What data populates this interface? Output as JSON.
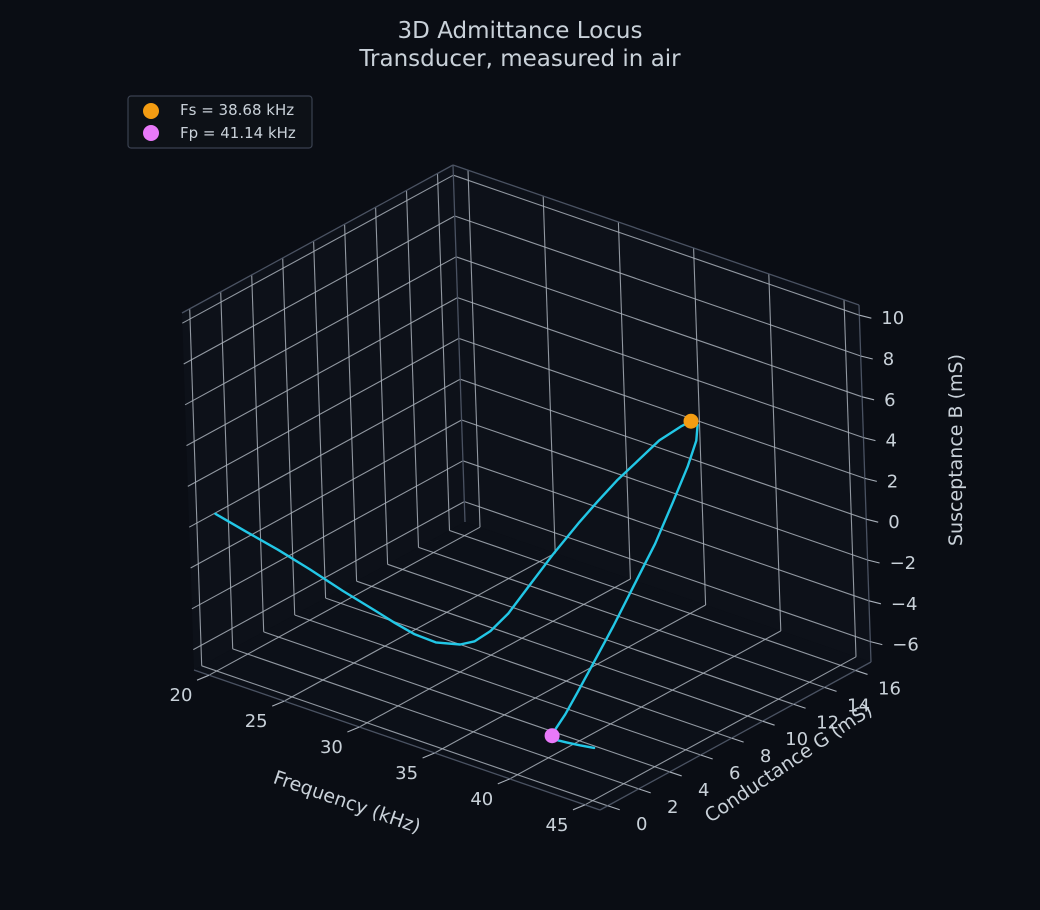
{
  "chart_data": {
    "type": "line",
    "projection": "3d",
    "title": "3D Admittance Locus",
    "subtitle": "Transducer, measured in air",
    "xlabel": "Frequency (kHz)",
    "ylabel": "Conductance G (mS)",
    "zlabel": "Susceptance B (mS)",
    "xlim": [
      19,
      46
    ],
    "ylim": [
      -0.5,
      17
    ],
    "zlim": [
      -7,
      10.5
    ],
    "xticks": [
      "20",
      "25",
      "30",
      "35",
      "40",
      "45"
    ],
    "yticks": [
      "0",
      "2",
      "4",
      "6",
      "8",
      "10",
      "12",
      "14",
      "16"
    ],
    "zticks": [
      "−6",
      "−4",
      "−2",
      "0",
      "2",
      "4",
      "6",
      "8",
      "10"
    ],
    "xtick_values": [
      20,
      25,
      30,
      35,
      40,
      45
    ],
    "ytick_values": [
      0,
      2,
      4,
      6,
      8,
      10,
      12,
      14,
      16
    ],
    "ztick_values": [
      -6,
      -4,
      -2,
      0,
      2,
      4,
      6,
      8,
      10
    ],
    "grid": true,
    "legend_position": "top-left",
    "series": [
      {
        "color": "#22c7e6",
        "freq": [
          20,
          22,
          24,
          26,
          28,
          30,
          31,
          32,
          33,
          34,
          34.5,
          35,
          35.5,
          36,
          36.5,
          37,
          37.3,
          37.6,
          37.9,
          38.2,
          38.5,
          38.68,
          38.9,
          39.1,
          39.3,
          39.5,
          39.7,
          39.9,
          40.1,
          40.3,
          40.5,
          40.7,
          40.9,
          41.14,
          41.5,
          42,
          43,
          44,
          45
        ],
        "G": [
          0.25,
          0.3,
          0.38,
          0.48,
          0.62,
          0.85,
          1.05,
          1.32,
          1.7,
          2.3,
          2.75,
          3.3,
          4.0,
          4.9,
          6.0,
          7.3,
          8.2,
          9.2,
          10.3,
          11.4,
          12.5,
          13.0,
          13.2,
          12.9,
          12.1,
          10.9,
          9.5,
          7.9,
          6.3,
          4.8,
          3.5,
          2.5,
          1.7,
          1.2,
          0.85,
          0.55,
          0.35,
          0.25,
          0.2
        ],
        "B": [
          0.6,
          0.2,
          -0.2,
          -0.7,
          -1.3,
          -1.9,
          -2.3,
          -2.7,
          -3.0,
          -3.1,
          -3.0,
          -2.6,
          -1.9,
          -0.8,
          0.4,
          1.6,
          2.3,
          3.0,
          3.6,
          4.2,
          4.5,
          4.6,
          4.4,
          3.8,
          2.9,
          1.7,
          0.3,
          -1.0,
          -2.3,
          -3.4,
          -4.3,
          -4.9,
          -5.2,
          -5.3,
          -5.2,
          -5.0,
          -4.8,
          -4.65,
          -4.5
        ]
      }
    ],
    "markers": [
      {
        "label": "Fs = 38.68 kHz",
        "color": "#f39c12",
        "freq": 38.68,
        "G": 13.0,
        "B": 4.6
      },
      {
        "label": "Fp = 41.14 kHz",
        "color": "#e879f9",
        "freq": 41.14,
        "G": 1.2,
        "B": -5.3
      }
    ]
  }
}
